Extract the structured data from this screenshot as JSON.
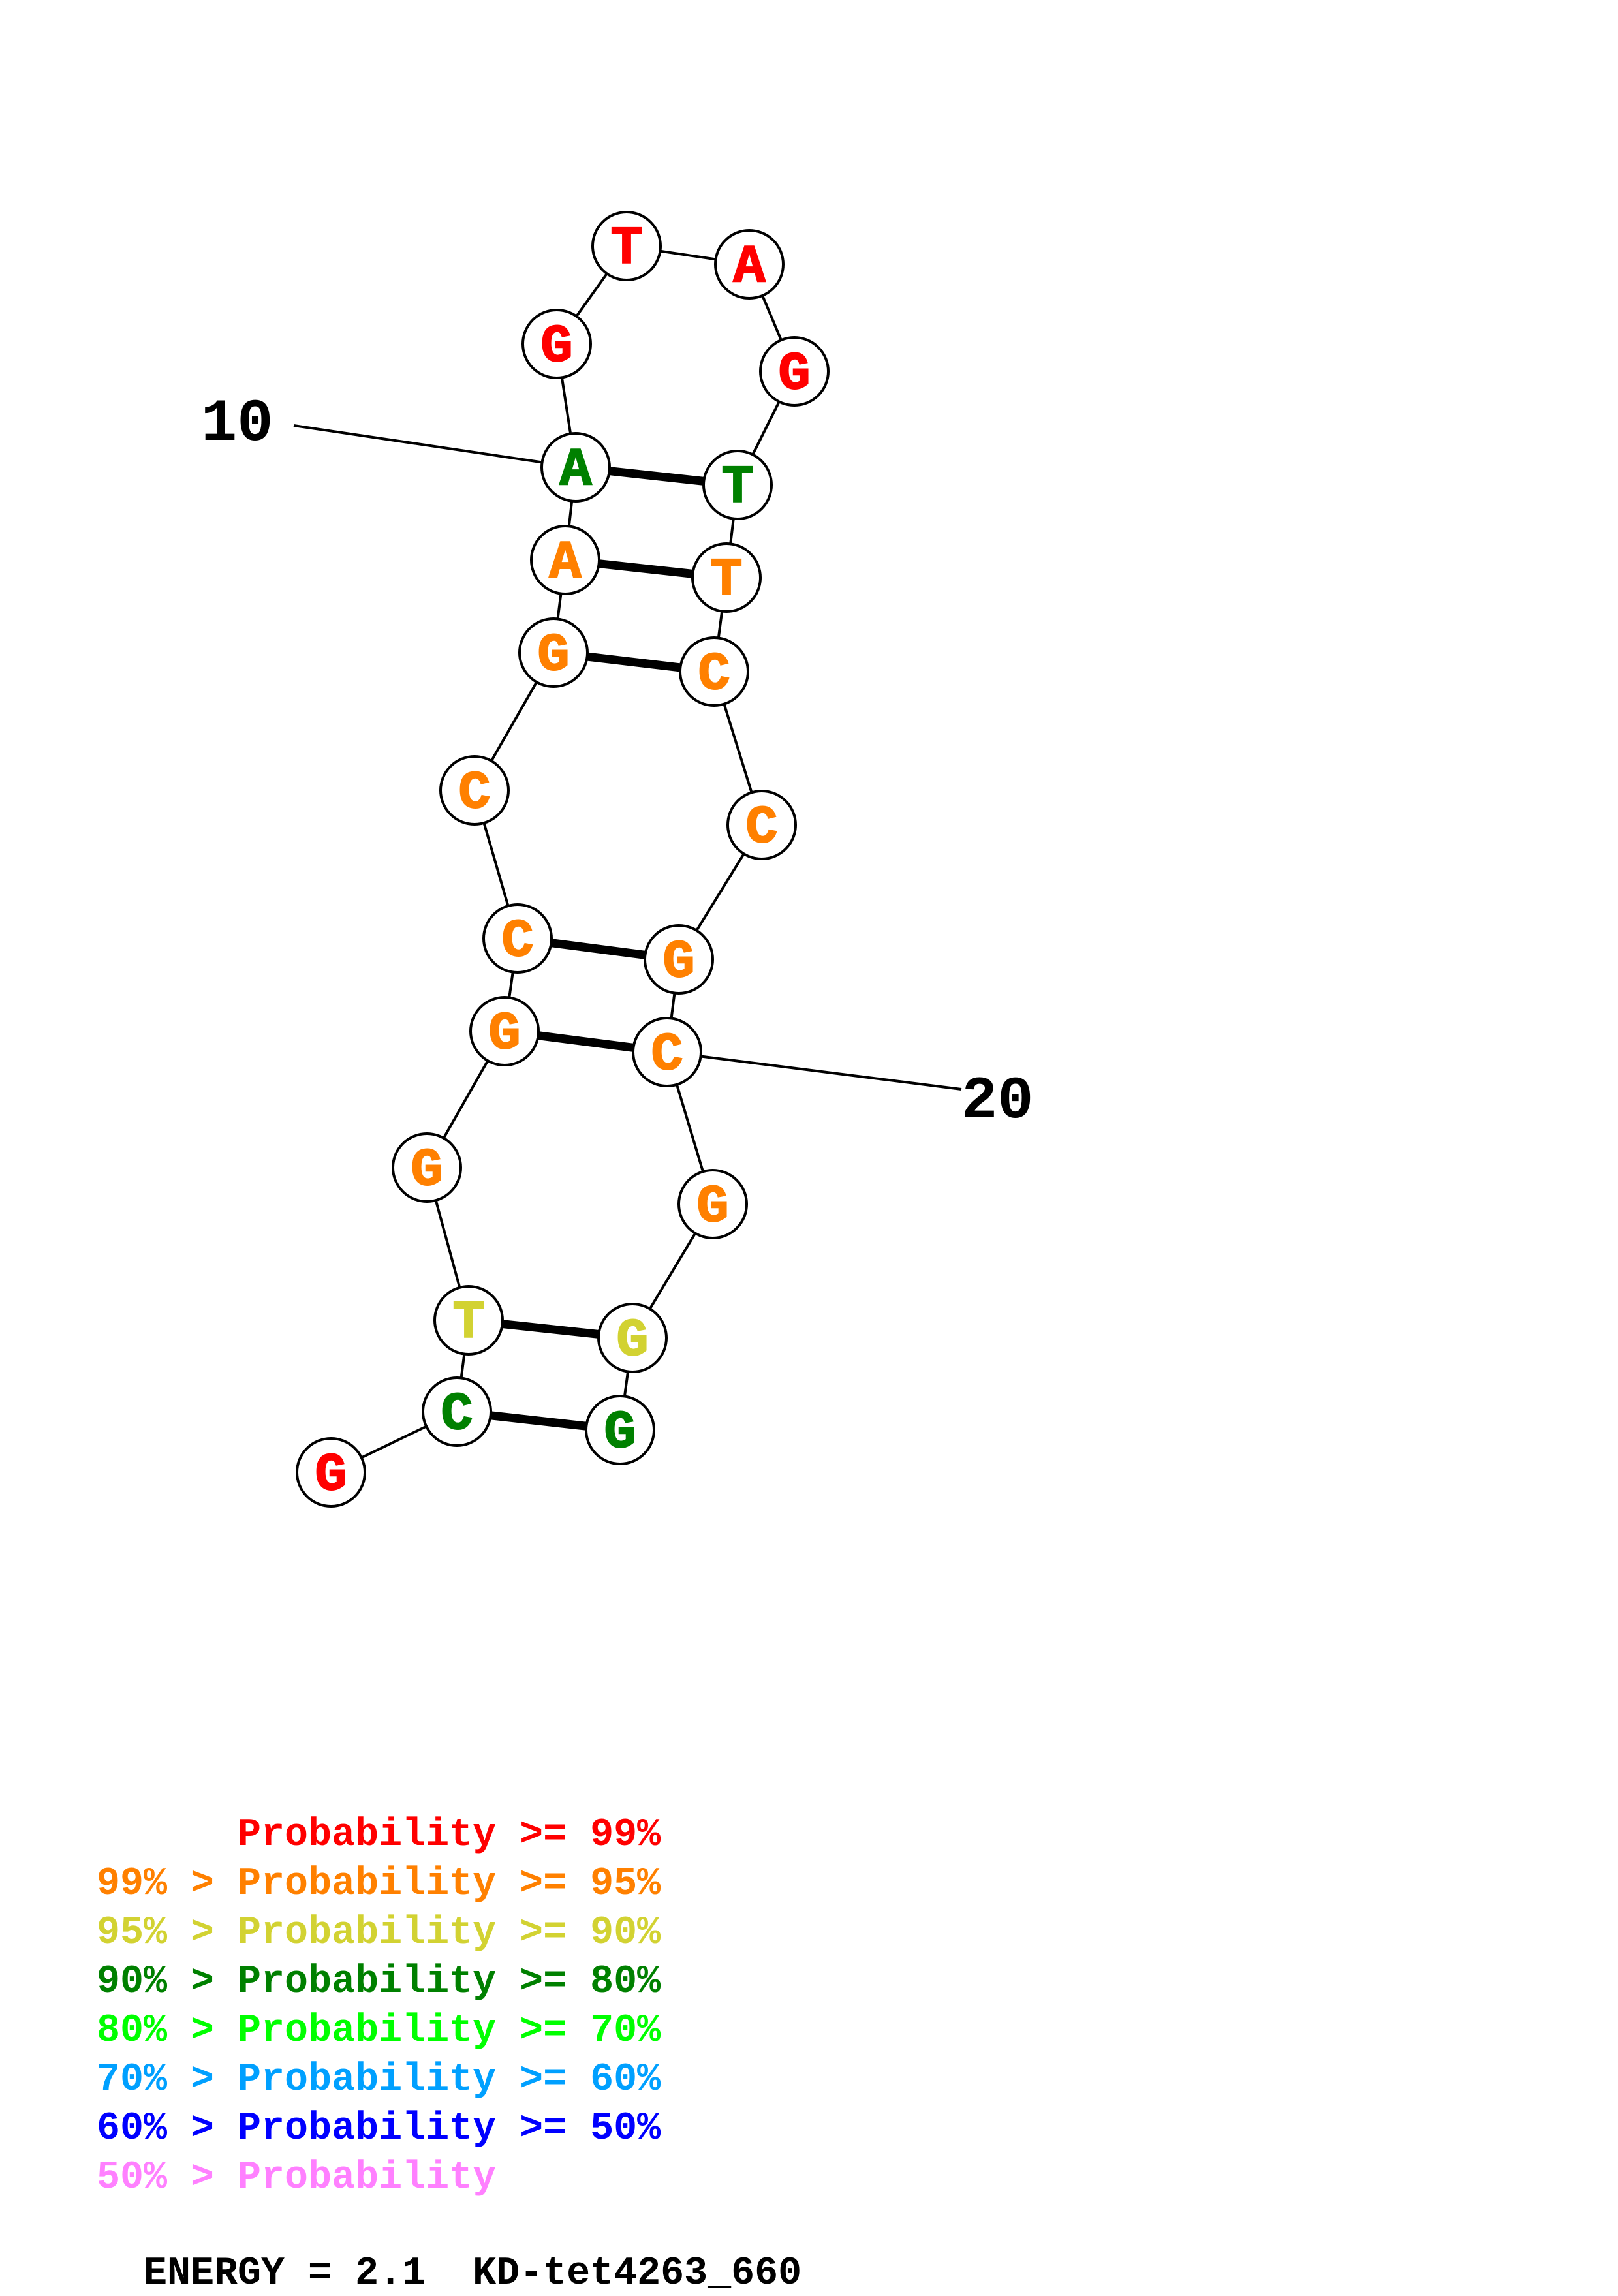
{
  "colors": {
    "p99": "#ff0000",
    "p95": "#ff8000",
    "p90": "#d2d232",
    "p80": "#008000",
    "p70": "#00ff00",
    "p60": "#00a0ff",
    "p50": "#0000ff",
    "plow": "#ff80ff"
  },
  "nucleotides": [
    {
      "index": 1,
      "base": "G",
      "color": "#ff0000"
    },
    {
      "index": 2,
      "base": "C",
      "color": "#008000"
    },
    {
      "index": 3,
      "base": "T",
      "color": "#d2d232"
    },
    {
      "index": 4,
      "base": "G",
      "color": "#ff8000"
    },
    {
      "index": 5,
      "base": "G",
      "color": "#ff8000"
    },
    {
      "index": 6,
      "base": "C",
      "color": "#ff8000"
    },
    {
      "index": 7,
      "base": "C",
      "color": "#ff8000"
    },
    {
      "index": 8,
      "base": "G",
      "color": "#ff8000"
    },
    {
      "index": 9,
      "base": "A",
      "color": "#ff8000"
    },
    {
      "index": 10,
      "base": "A",
      "color": "#008000"
    },
    {
      "index": 11,
      "base": "G",
      "color": "#ff0000"
    },
    {
      "index": 12,
      "base": "T",
      "color": "#ff0000"
    },
    {
      "index": 13,
      "base": "A",
      "color": "#ff0000"
    },
    {
      "index": 14,
      "base": "G",
      "color": "#ff0000"
    },
    {
      "index": 15,
      "base": "T",
      "color": "#008000"
    },
    {
      "index": 16,
      "base": "T",
      "color": "#ff8000"
    },
    {
      "index": 17,
      "base": "C",
      "color": "#ff8000"
    },
    {
      "index": 18,
      "base": "C",
      "color": "#ff8000"
    },
    {
      "index": 19,
      "base": "G",
      "color": "#ff8000"
    },
    {
      "index": 20,
      "base": "C",
      "color": "#ff8000"
    },
    {
      "index": 21,
      "base": "G",
      "color": "#ff8000"
    },
    {
      "index": 22,
      "base": "G",
      "color": "#d2d232"
    },
    {
      "index": 23,
      "base": "G",
      "color": "#008000"
    }
  ],
  "base_pairs": [
    [
      2,
      23
    ],
    [
      3,
      22
    ],
    [
      5,
      20
    ],
    [
      6,
      19
    ],
    [
      8,
      17
    ],
    [
      9,
      16
    ],
    [
      10,
      15
    ]
  ],
  "position_labels": [
    {
      "text": "10",
      "index": 10
    },
    {
      "text": "20",
      "index": 20
    }
  ],
  "legend": [
    {
      "prefix": "    ",
      "text": "Probability >= 99%",
      "color": "#ff0000"
    },
    {
      "prefix": "99% > ",
      "text": "Probability >= 95%",
      "color": "#ff8000"
    },
    {
      "prefix": "95% > ",
      "text": "Probability >= 90%",
      "color": "#d2d232"
    },
    {
      "prefix": "90% > ",
      "text": "Probability >= 80%",
      "color": "#008000"
    },
    {
      "prefix": "80% > ",
      "text": "Probability >= 70%",
      "color": "#00ff00"
    },
    {
      "prefix": "70% > ",
      "text": "Probability >= 60%",
      "color": "#00a0ff"
    },
    {
      "prefix": "60% > ",
      "text": "Probability >= 50%",
      "color": "#0000ff"
    },
    {
      "prefix": "50% > ",
      "text": "Probability",
      "color": "#ff80ff"
    }
  ],
  "footer": {
    "energy_text": "ENERGY = 2.1  KD-tet4263_660"
  }
}
